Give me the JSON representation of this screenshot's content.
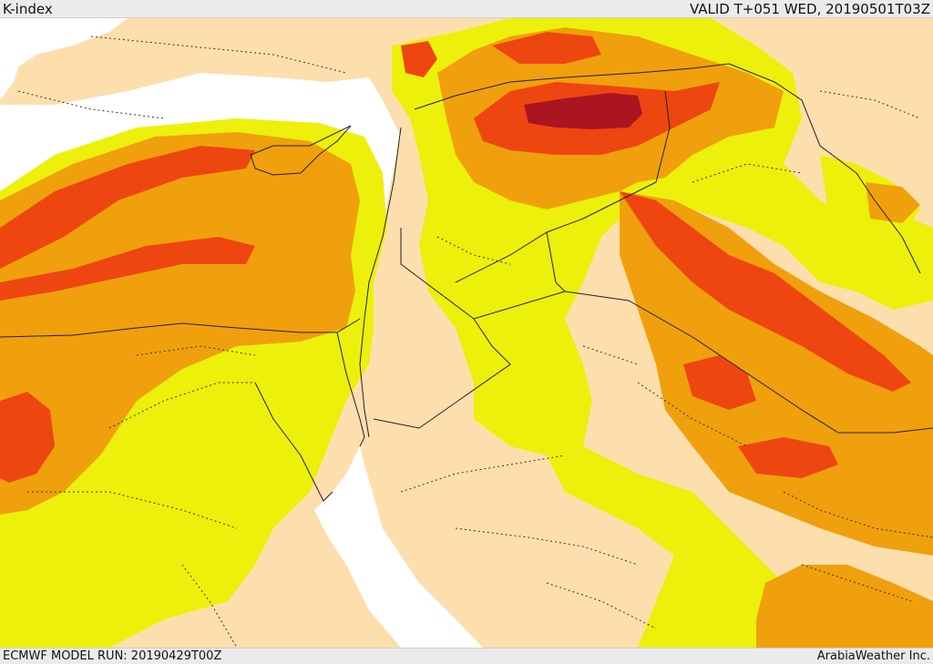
{
  "header": {
    "title": "K-index",
    "valid_time": "VALID T+051 WED, 20190501T03Z"
  },
  "footer": {
    "model_run": "ECMWF MODEL RUN: 20190429T00Z",
    "credit": "ArabiaWeather Inc."
  },
  "palette": {
    "land_base": "#fddfae",
    "sea": "#ffffff",
    "band_yellow": "#ecf00a",
    "band_orange": "#f0a00c",
    "band_red": "#ee4610",
    "band_darkred": "#ab1421",
    "borders": "#222222"
  }
}
